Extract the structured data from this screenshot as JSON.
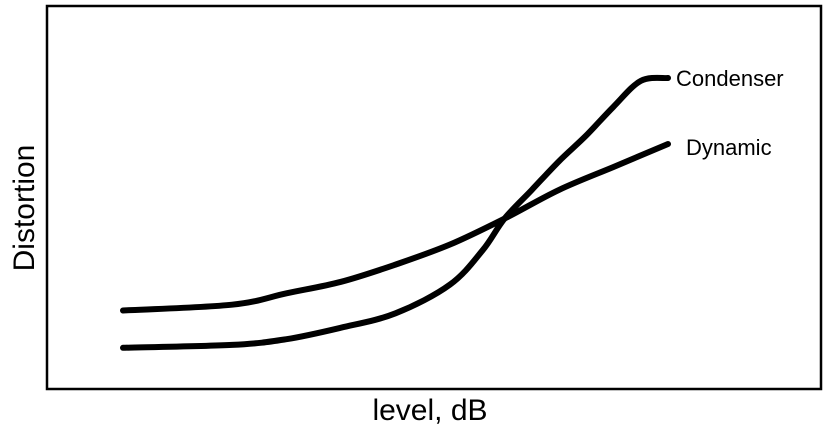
{
  "chart_data": {
    "type": "line",
    "title": "",
    "xlabel": "level, dB",
    "ylabel": "Distortion",
    "xlim": [
      0,
      10
    ],
    "ylim": [
      0,
      10
    ],
    "grid": false,
    "legend": "inline labels at line ends",
    "tick_labels": false,
    "series": [
      {
        "name": "Condenser",
        "color": "#000000",
        "x": [
          0,
          2,
          3,
          4,
          5,
          6,
          6.6,
          7,
          7.5,
          8,
          8.5,
          9,
          9.5,
          10
        ],
        "y": [
          0.6,
          0.7,
          0.9,
          1.3,
          1.8,
          2.8,
          4.0,
          5.1,
          6.1,
          7.1,
          8.0,
          9.0,
          9.9,
          10.0
        ]
      },
      {
        "name": "Dynamic",
        "color": "#000000",
        "x": [
          0,
          2,
          3,
          4,
          5,
          6,
          7,
          8,
          9,
          10
        ],
        "y": [
          1.9,
          2.1,
          2.5,
          2.9,
          3.5,
          4.2,
          5.1,
          6.1,
          6.9,
          7.7
        ]
      }
    ]
  }
}
